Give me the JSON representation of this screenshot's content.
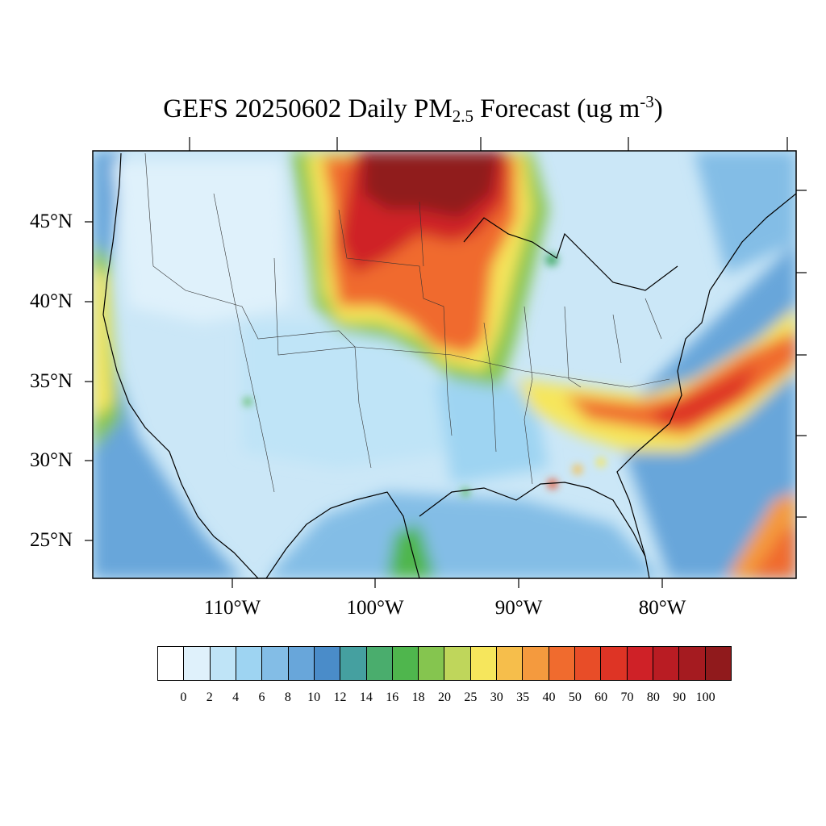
{
  "title": {
    "prefix": "GEFS 20250602 Daily PM",
    "subscript": "2.5",
    "mid": " Forecast (ug m",
    "superscript": "-3",
    "suffix": ")"
  },
  "lat_labels": [
    "45°N",
    "40°N",
    "35°N",
    "30°N",
    "25°N"
  ],
  "lon_labels": [
    "110°W",
    "100°W",
    "90°W",
    "80°W"
  ],
  "colorbar": {
    "labels": [
      "0",
      "2",
      "4",
      "6",
      "8",
      "10",
      "12",
      "14",
      "16",
      "18",
      "20",
      "25",
      "30",
      "35",
      "40",
      "50",
      "60",
      "70",
      "80",
      "90",
      "100"
    ],
    "colors": [
      "#ffffff",
      "#dff1fb",
      "#bfe4f7",
      "#9ed4f2",
      "#83bde6",
      "#68a6da",
      "#4a8cc9",
      "#45a0a0",
      "#4aad6d",
      "#4fb64d",
      "#85c54f",
      "#bfd65b",
      "#f6e65c",
      "#f6be4b",
      "#f49a3e",
      "#f06b2e",
      "#e84d28",
      "#de3425",
      "#cf2127",
      "#b91c23",
      "#a51b20",
      "#901a1c"
    ]
  },
  "map": {
    "background_color": "#cbe7f7",
    "plumes": [
      {
        "name": "canada-wildfire-smoke",
        "color": "#901a1c"
      },
      {
        "name": "east-coast-plume",
        "color": "#e84d28"
      },
      {
        "name": "pacific-coast-band",
        "color": "#f6e65c"
      },
      {
        "name": "caribbean-plume",
        "color": "#f49a3e"
      }
    ]
  }
}
